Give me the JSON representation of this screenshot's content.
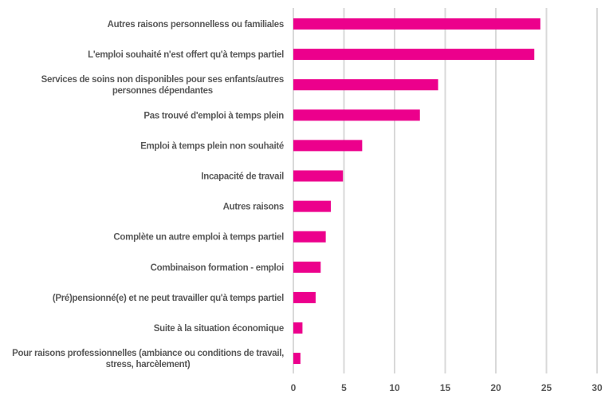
{
  "chart_data": {
    "type": "bar",
    "orientation": "horizontal",
    "title": "",
    "xlabel": "",
    "ylabel": "",
    "categories": [
      "Autres raisons personnelless ou familiales",
      "L'emploi souhaité n'est offert qu'à temps partiel",
      "Services de soins non disponibles pour ses enfants/autres personnes dépendantes",
      "Pas trouvé d'emploi à temps plein",
      "Emploi à temps plein non souhaité",
      "Incapacité de travail",
      "Autres raisons",
      "Complète un autre emploi à temps partiel",
      "Combinaison formation - emploi",
      "(Pré)pensionné(e) et ne peut travailler qu'à temps partiel",
      "Suite à la situation économique",
      "Pour raisons professionnelles (ambiance ou conditions de travail, stress, harcèlement)"
    ],
    "values": [
      24.4,
      23.8,
      14.3,
      12.5,
      6.8,
      4.9,
      3.7,
      3.2,
      2.7,
      2.2,
      0.9,
      0.7
    ],
    "xlim": [
      0,
      30
    ],
    "xticks": [
      0,
      5,
      10,
      15,
      20,
      25,
      30
    ],
    "grid": true,
    "legend": "none",
    "bar_color": "#ec008c"
  }
}
